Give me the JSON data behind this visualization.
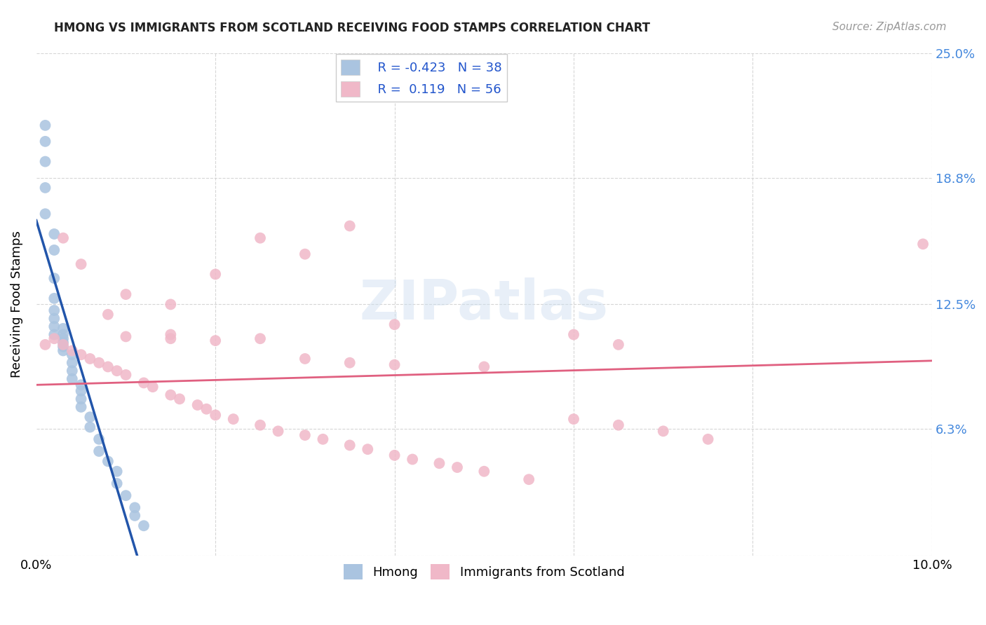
{
  "title": "HMONG VS IMMIGRANTS FROM SCOTLAND RECEIVING FOOD STAMPS CORRELATION CHART",
  "source": "Source: ZipAtlas.com",
  "ylabel": "Receiving Food Stamps",
  "color_hmong": "#aac4e0",
  "color_scotland": "#f0b8c8",
  "color_hmong_line": "#2255aa",
  "color_scotland_line": "#e06080",
  "color_right_ticks": "#4488cc",
  "hmong_x": [
    0.001,
    0.001,
    0.001,
    0.001,
    0.001,
    0.002,
    0.002,
    0.002,
    0.002,
    0.002,
    0.002,
    0.002,
    0.002,
    0.003,
    0.003,
    0.003,
    0.003,
    0.003,
    0.003,
    0.004,
    0.004,
    0.004,
    0.004,
    0.005,
    0.005,
    0.005,
    0.005,
    0.006,
    0.006,
    0.007,
    0.007,
    0.008,
    0.009,
    0.009,
    0.01,
    0.011,
    0.011,
    0.012
  ],
  "hmong_y": [
    0.214,
    0.206,
    0.196,
    0.183,
    0.17,
    0.16,
    0.152,
    0.138,
    0.128,
    0.122,
    0.118,
    0.114,
    0.11,
    0.113,
    0.11,
    0.108,
    0.106,
    0.104,
    0.102,
    0.1,
    0.096,
    0.092,
    0.088,
    0.085,
    0.082,
    0.078,
    0.074,
    0.069,
    0.064,
    0.058,
    0.052,
    0.047,
    0.042,
    0.036,
    0.03,
    0.024,
    0.02,
    0.015
  ],
  "scotland_x": [
    0.001,
    0.002,
    0.003,
    0.004,
    0.005,
    0.006,
    0.007,
    0.008,
    0.009,
    0.01,
    0.012,
    0.013,
    0.015,
    0.016,
    0.018,
    0.019,
    0.02,
    0.022,
    0.025,
    0.027,
    0.03,
    0.032,
    0.035,
    0.037,
    0.04,
    0.042,
    0.045,
    0.047,
    0.05,
    0.055,
    0.01,
    0.015,
    0.02,
    0.025,
    0.03,
    0.035,
    0.04,
    0.05,
    0.06,
    0.065,
    0.07,
    0.075,
    0.06,
    0.065,
    0.03,
    0.035,
    0.025,
    0.02,
    0.015,
    0.008,
    0.003,
    0.005,
    0.01,
    0.015,
    0.099,
    0.04
  ],
  "scotland_y": [
    0.105,
    0.108,
    0.105,
    0.102,
    0.1,
    0.098,
    0.096,
    0.094,
    0.092,
    0.09,
    0.086,
    0.084,
    0.08,
    0.078,
    0.075,
    0.073,
    0.07,
    0.068,
    0.065,
    0.062,
    0.06,
    0.058,
    0.055,
    0.053,
    0.05,
    0.048,
    0.046,
    0.044,
    0.042,
    0.038,
    0.109,
    0.108,
    0.107,
    0.108,
    0.098,
    0.096,
    0.095,
    0.094,
    0.068,
    0.065,
    0.062,
    0.058,
    0.11,
    0.105,
    0.15,
    0.164,
    0.158,
    0.14,
    0.125,
    0.12,
    0.158,
    0.145,
    0.13,
    0.11,
    0.155,
    0.115
  ],
  "hmong_line_x0": 0.0,
  "hmong_line_x1": 0.014,
  "scotland_line_x0": 0.0,
  "scotland_line_x1": 0.1,
  "scotland_line_y0": 0.085,
  "scotland_line_y1": 0.097,
  "xlim": [
    0.0,
    0.1
  ],
  "ylim": [
    0.0,
    0.25
  ],
  "ytick_positions": [
    0.0,
    0.063,
    0.125,
    0.188,
    0.25
  ],
  "ytick_labels_right": [
    "",
    "6.3%",
    "12.5%",
    "18.8%",
    "25.0%"
  ],
  "xtick_positions": [
    0.0,
    0.02,
    0.04,
    0.06,
    0.08,
    0.1
  ],
  "xtick_labels": [
    "0.0%",
    "",
    "",
    "",
    "",
    "10.0%"
  ]
}
